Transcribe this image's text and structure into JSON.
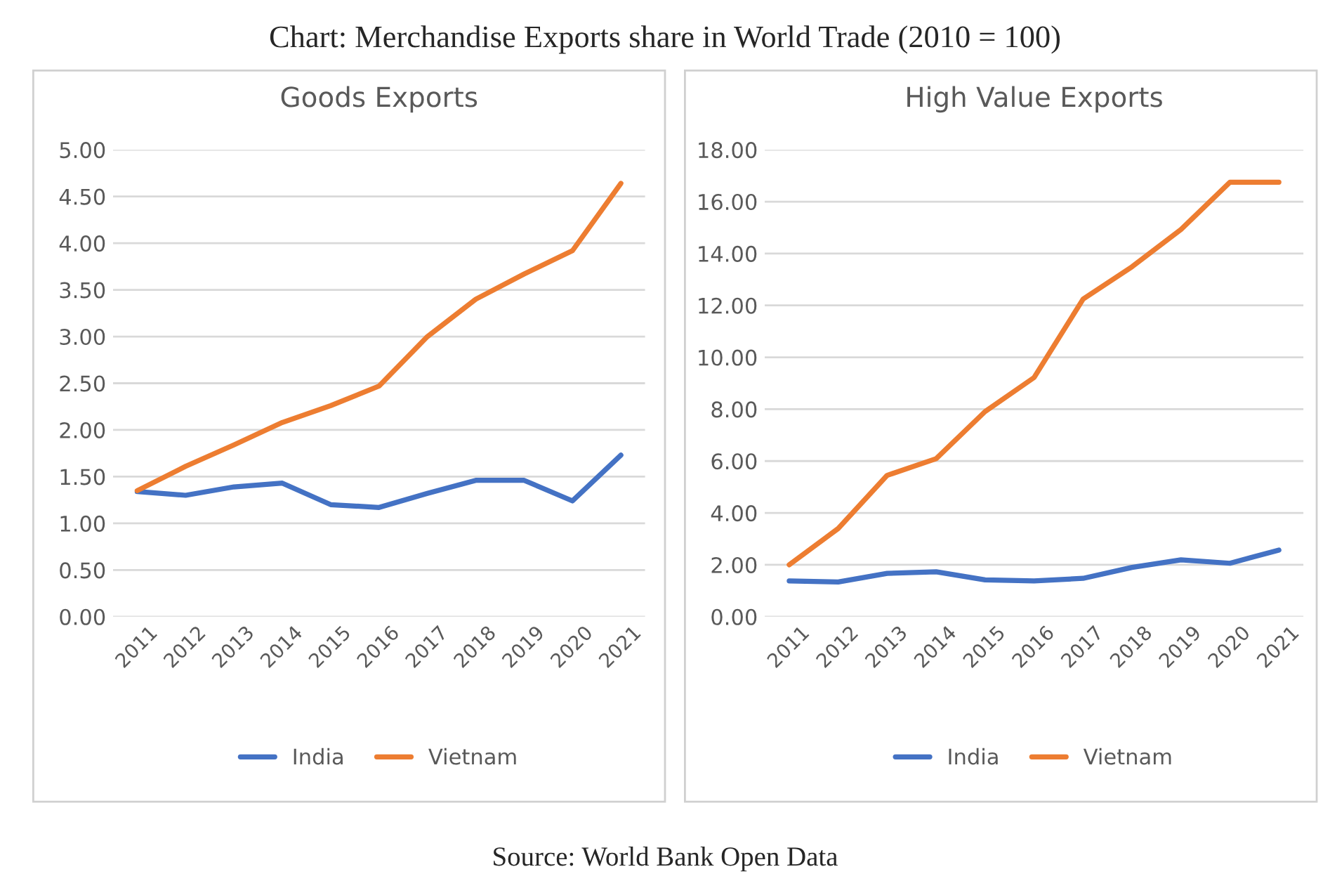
{
  "chart_data": [
    {
      "type": "line",
      "title": "Goods Exports",
      "categories": [
        "2011",
        "2012",
        "2013",
        "2014",
        "2015",
        "2016",
        "2017",
        "2018",
        "2019",
        "2020",
        "2021"
      ],
      "series": [
        {
          "name": "India",
          "color": "#4472c4",
          "values": [
            1.34,
            1.3,
            1.39,
            1.43,
            1.2,
            1.17,
            1.32,
            1.46,
            1.46,
            1.24,
            1.73
          ]
        },
        {
          "name": "Vietnam",
          "color": "#ed7d31",
          "values": [
            1.35,
            1.61,
            1.84,
            2.08,
            2.26,
            2.47,
            3.0,
            3.4,
            3.67,
            3.92,
            4.64
          ]
        }
      ],
      "ylim": [
        0,
        5
      ],
      "yticks": [
        {
          "value": 0,
          "label": "0.00"
        },
        {
          "value": 0.5,
          "label": "0.50"
        },
        {
          "value": 1,
          "label": "1.00"
        },
        {
          "value": 1.5,
          "label": "1.50"
        },
        {
          "value": 2,
          "label": "2.00"
        },
        {
          "value": 2.5,
          "label": "2.50"
        },
        {
          "value": 3,
          "label": "3.00"
        },
        {
          "value": 3.5,
          "label": "3.50"
        },
        {
          "value": 4,
          "label": "4.00"
        },
        {
          "value": 4.5,
          "label": "4.50"
        },
        {
          "value": 5,
          "label": "5.00"
        }
      ],
      "grid": "y",
      "legend": "bottom",
      "annotations": [
        "Chart: Merchandise Exports share in World Trade (2010 = 100)"
      ]
    },
    {
      "type": "line",
      "title": "High Value Exports",
      "categories": [
        "2011",
        "2012",
        "2013",
        "2014",
        "2015",
        "2016",
        "2017",
        "2018",
        "2019",
        "2020",
        "2021"
      ],
      "series": [
        {
          "name": "India",
          "color": "#4472c4",
          "values": [
            1.38,
            1.34,
            1.67,
            1.73,
            1.42,
            1.38,
            1.48,
            1.9,
            2.19,
            2.06,
            2.57
          ]
        },
        {
          "name": "Vietnam",
          "color": "#ed7d31",
          "values": [
            2.0,
            3.4,
            5.45,
            6.09,
            7.91,
            9.22,
            12.24,
            13.49,
            14.93,
            16.75,
            16.75
          ]
        }
      ],
      "ylim": [
        0,
        18
      ],
      "yticks": [
        {
          "value": 0,
          "label": "0.00"
        },
        {
          "value": 2,
          "label": "2.00"
        },
        {
          "value": 4,
          "label": "4.00"
        },
        {
          "value": 6,
          "label": "6.00"
        },
        {
          "value": 8,
          "label": "8.00"
        },
        {
          "value": 10,
          "label": "10.00"
        },
        {
          "value": 12,
          "label": "12.00"
        },
        {
          "value": 14,
          "label": "14.00"
        },
        {
          "value": 16,
          "label": "16.00"
        },
        {
          "value": 18,
          "label": "18.00"
        }
      ],
      "grid": "y",
      "legend": "bottom",
      "annotations": [
        "Source: World Bank Open Data"
      ]
    }
  ]
}
